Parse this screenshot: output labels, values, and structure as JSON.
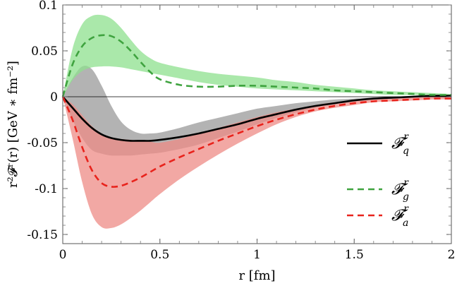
{
  "chart_data": {
    "type": "line",
    "xlabel": "r [fm]",
    "ylabel": "r²𝓕ʳ(r) [GeV ∗ fm⁻²]",
    "xlim": [
      0,
      2
    ],
    "ylim": [
      -0.16,
      0.1
    ],
    "x_ticks": [
      "0",
      "0.5",
      "1",
      "1.5",
      "2"
    ],
    "x_tick_values": [
      0,
      0.5,
      1,
      1.5,
      2
    ],
    "y_ticks": [
      "0.1",
      "0.05",
      "0",
      "-0.05",
      "-0.1",
      "-0.15"
    ],
    "y_tick_values": [
      0.1,
      0.05,
      0,
      -0.05,
      -0.1,
      -0.15
    ],
    "zero_line": true,
    "legend_position": "right",
    "x": [
      0,
      0.05,
      0.1,
      0.15,
      0.2,
      0.25,
      0.3,
      0.35,
      0.4,
      0.45,
      0.5,
      0.6,
      0.7,
      0.8,
      0.9,
      1.0,
      1.1,
      1.2,
      1.3,
      1.4,
      1.5,
      1.6,
      1.7,
      1.8,
      1.9,
      2.0
    ],
    "series": [
      {
        "name": "𝓕_q^r",
        "legend_main": "𝓕",
        "legend_sub": "q",
        "legend_sup": "r",
        "style": "solid",
        "color": "#000000",
        "band_color": "#9a9a9a",
        "values": [
          0,
          -0.012,
          -0.024,
          -0.034,
          -0.041,
          -0.045,
          -0.047,
          -0.048,
          -0.048,
          -0.048,
          -0.047,
          -0.044,
          -0.04,
          -0.035,
          -0.03,
          -0.024,
          -0.019,
          -0.014,
          -0.01,
          -0.007,
          -0.004,
          -0.002,
          -0.001,
          0.0,
          0.001,
          0.001
        ],
        "lower": [
          0,
          -0.025,
          -0.045,
          -0.058,
          -0.062,
          -0.064,
          -0.064,
          -0.064,
          -0.063,
          -0.062,
          -0.061,
          -0.057,
          -0.052,
          -0.045,
          -0.038,
          -0.03,
          -0.023,
          -0.017,
          -0.012,
          -0.008,
          -0.005,
          -0.003,
          -0.002,
          -0.001,
          0.0,
          0.0
        ],
        "upper": [
          0,
          0.02,
          0.033,
          0.03,
          0.012,
          -0.01,
          -0.027,
          -0.036,
          -0.04,
          -0.04,
          -0.039,
          -0.034,
          -0.028,
          -0.023,
          -0.018,
          -0.013,
          -0.01,
          -0.007,
          -0.005,
          -0.003,
          -0.002,
          -0.001,
          0.0,
          0.001,
          0.002,
          0.002
        ]
      },
      {
        "name": "𝓕_g^r",
        "legend_main": "𝓕",
        "legend_sub": "g",
        "legend_sup": "r",
        "style": "dashed",
        "color": "#3fa33f",
        "band_color": "#8ee08e",
        "values": [
          0,
          0.035,
          0.055,
          0.064,
          0.067,
          0.066,
          0.06,
          0.05,
          0.038,
          0.027,
          0.019,
          0.013,
          0.011,
          0.011,
          0.012,
          0.012,
          0.011,
          0.01,
          0.009,
          0.007,
          0.006,
          0.005,
          0.004,
          0.003,
          0.002,
          0.002
        ],
        "lower": [
          0,
          0.018,
          0.028,
          0.032,
          0.033,
          0.033,
          0.032,
          0.03,
          0.028,
          0.026,
          0.024,
          0.02,
          0.016,
          0.013,
          0.011,
          0.009,
          0.008,
          0.007,
          0.006,
          0.005,
          0.004,
          0.003,
          0.002,
          0.002,
          0.001,
          0.001
        ],
        "upper": [
          0,
          0.052,
          0.079,
          0.088,
          0.089,
          0.085,
          0.075,
          0.062,
          0.05,
          0.042,
          0.037,
          0.032,
          0.028,
          0.025,
          0.023,
          0.021,
          0.018,
          0.016,
          0.013,
          0.011,
          0.009,
          0.007,
          0.006,
          0.005,
          0.004,
          0.003
        ]
      },
      {
        "name": "𝓕_a^r",
        "legend_main": "𝓕",
        "legend_sub": "a",
        "legend_sup": "r",
        "style": "dashed",
        "color": "#e8231c",
        "band_color": "#ee8b86",
        "values": [
          0,
          -0.025,
          -0.055,
          -0.08,
          -0.094,
          -0.098,
          -0.097,
          -0.093,
          -0.088,
          -0.082,
          -0.076,
          -0.066,
          -0.057,
          -0.048,
          -0.04,
          -0.032,
          -0.025,
          -0.019,
          -0.014,
          -0.01,
          -0.007,
          -0.005,
          -0.004,
          -0.003,
          -0.002,
          -0.002
        ],
        "lower": [
          0,
          -0.045,
          -0.093,
          -0.128,
          -0.142,
          -0.143,
          -0.139,
          -0.132,
          -0.124,
          -0.115,
          -0.106,
          -0.09,
          -0.076,
          -0.063,
          -0.051,
          -0.04,
          -0.03,
          -0.022,
          -0.016,
          -0.012,
          -0.009,
          -0.006,
          -0.005,
          -0.004,
          -0.003,
          -0.003
        ],
        "upper": [
          0,
          -0.008,
          -0.02,
          -0.032,
          -0.04,
          -0.044,
          -0.046,
          -0.047,
          -0.048,
          -0.049,
          -0.05,
          -0.046,
          -0.04,
          -0.034,
          -0.028,
          -0.022,
          -0.017,
          -0.013,
          -0.009,
          -0.006,
          -0.004,
          -0.003,
          -0.002,
          -0.001,
          0.0,
          0.0
        ]
      }
    ]
  }
}
